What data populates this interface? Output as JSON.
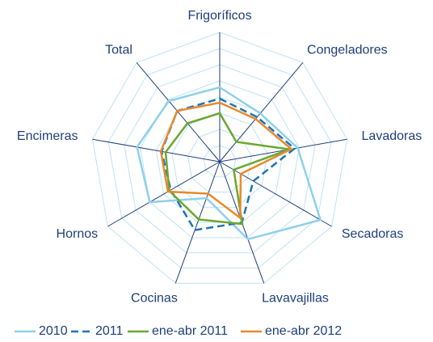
{
  "chart_data": {
    "type": "radar",
    "categories": [
      "Frigoríficos",
      "Congeladores",
      "Lavadoras",
      "Secadoras",
      "Lavavajillas",
      "Cocinas",
      "Hornos",
      "Encimeras",
      "Total"
    ],
    "ylim": [
      0,
      8
    ],
    "yticks": [
      1,
      2,
      3,
      4,
      5,
      6,
      7,
      8
    ],
    "grid": true,
    "legend": "bottom",
    "series": [
      {
        "name": "2010",
        "color": "#8fd0ec",
        "dash": false,
        "values": [
          4.6,
          3.9,
          4.9,
          7.2,
          5.1,
          2.4,
          5.0,
          5.2,
          4.9
        ]
      },
      {
        "name": "2011",
        "color": "#1e73b8",
        "dash": true,
        "values": [
          3.9,
          3.6,
          4.7,
          2.4,
          4.0,
          4.5,
          3.5,
          3.65,
          4.1
        ]
      },
      {
        "name": "ene-abr 2011",
        "color": "#6aa82f",
        "dash": false,
        "values": [
          3.0,
          1.6,
          4.4,
          1.0,
          4.1,
          3.8,
          3.6,
          3.4,
          3.1
        ]
      },
      {
        "name": "ene-abr 2012",
        "color": "#e8892b",
        "dash": false,
        "values": [
          3.65,
          3.45,
          4.5,
          1.5,
          3.7,
          2.1,
          3.7,
          3.7,
          4.1
        ]
      }
    ]
  }
}
